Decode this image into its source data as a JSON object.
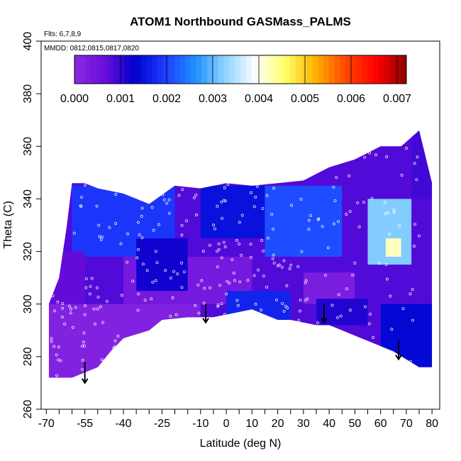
{
  "chart_data": {
    "type": "heatmap",
    "title": "ATOM1 Northbound GASMass_PALMS",
    "notes": {
      "flights": "Flts: 6,7,8,9",
      "dates": "MMDD: 0812,0815,0817,0820"
    },
    "xlabel": "Latitude (deg N)",
    "ylabel": "Theta (C)",
    "xlim": [
      -72,
      83
    ],
    "ylim": [
      260,
      400
    ],
    "x_ticks": [
      -70,
      -55,
      -40,
      -25,
      -10,
      0,
      10,
      20,
      30,
      40,
      50,
      60,
      70,
      80
    ],
    "x_tick_labels": [
      "-70",
      "-55",
      "-40",
      "-25",
      "-10",
      "0",
      "10",
      "20",
      "30",
      "40",
      "50",
      "60",
      "70",
      "80"
    ],
    "x_minor_ticks": [
      -65,
      -60,
      -50,
      -45,
      -35,
      -30,
      -20,
      -15,
      -5,
      5,
      15,
      25,
      35,
      45,
      55,
      65,
      75
    ],
    "y_ticks": [
      260,
      280,
      300,
      320,
      340,
      360,
      380,
      400
    ],
    "y_tick_labels": [
      "260",
      "280",
      "300",
      "320",
      "340",
      "360",
      "380",
      "400"
    ],
    "colorbar": {
      "range": [
        0,
        0.0072
      ],
      "ticks": [
        0.0,
        0.001,
        0.002,
        0.003,
        0.004,
        0.005,
        0.006,
        0.007
      ],
      "tick_labels": [
        "0.000",
        "0.001",
        "0.002",
        "0.003",
        "0.004",
        "0.005",
        "0.006",
        "0.007"
      ],
      "colors": [
        "#8a2be2",
        "#6a0ddb",
        "#0000cd",
        "#1e3cff",
        "#1e90ff",
        "#8fd3ff",
        "#ffffff",
        "#ffff66",
        "#ffb000",
        "#ff4500",
        "#ff0000",
        "#8b0000"
      ]
    },
    "field": {
      "bottom_boundary": [
        [
          -69,
          272
        ],
        [
          -60,
          272
        ],
        [
          -55,
          274
        ],
        [
          -50,
          276
        ],
        [
          -45,
          282
        ],
        [
          -40,
          287
        ],
        [
          -30,
          290
        ],
        [
          -25,
          294
        ],
        [
          -15,
          295
        ],
        [
          -5,
          295
        ],
        [
          0,
          296
        ],
        [
          10,
          298
        ],
        [
          20,
          294
        ],
        [
          25,
          294
        ],
        [
          30,
          293
        ],
        [
          35,
          292
        ],
        [
          40,
          292
        ],
        [
          45,
          290
        ],
        [
          50,
          288
        ],
        [
          55,
          286
        ],
        [
          60,
          284
        ],
        [
          65,
          282
        ],
        [
          70,
          279
        ],
        [
          75,
          276
        ],
        [
          80,
          276
        ]
      ],
      "top_boundary": [
        [
          -69,
          300
        ],
        [
          -65,
          310
        ],
        [
          -62,
          330
        ],
        [
          -60,
          346
        ],
        [
          -55,
          346
        ],
        [
          -50,
          344
        ],
        [
          -40,
          342
        ],
        [
          -35,
          340
        ],
        [
          -30,
          338
        ],
        [
          -20,
          345
        ],
        [
          -10,
          344
        ],
        [
          0,
          346
        ],
        [
          10,
          345
        ],
        [
          20,
          346
        ],
        [
          30,
          347
        ],
        [
          40,
          352
        ],
        [
          50,
          355
        ],
        [
          60,
          360
        ],
        [
          68,
          360
        ],
        [
          75,
          366
        ],
        [
          80,
          346
        ]
      ],
      "patches": [
        {
          "x": [
            -69,
            80
          ],
          "y": [
            272,
            366
          ],
          "value": 0.0008
        },
        {
          "x": [
            -69,
            -10
          ],
          "y": [
            272,
            300
          ],
          "value": 0.0002
        },
        {
          "x": [
            -40,
            10
          ],
          "y": [
            300,
            318
          ],
          "value": 0.0004
        },
        {
          "x": [
            30,
            50
          ],
          "y": [
            300,
            312
          ],
          "value": 0.0003
        },
        {
          "x": [
            -60,
            -20
          ],
          "y": [
            318,
            345
          ],
          "value": 0.0019
        },
        {
          "x": [
            -35,
            -15
          ],
          "y": [
            305,
            325
          ],
          "value": 0.0012
        },
        {
          "x": [
            -10,
            15
          ],
          "y": [
            325,
            345
          ],
          "value": 0.0015
        },
        {
          "x": [
            15,
            45
          ],
          "y": [
            318,
            345
          ],
          "value": 0.0021
        },
        {
          "x": [
            55,
            72
          ],
          "y": [
            315,
            340
          ],
          "value": 0.0032
        },
        {
          "x": [
            62,
            68
          ],
          "y": [
            318,
            325
          ],
          "value": 0.0042
        },
        {
          "x": [
            0,
            25
          ],
          "y": [
            290,
            305
          ],
          "value": 0.0017
        },
        {
          "x": [
            35,
            55
          ],
          "y": [
            292,
            302
          ],
          "value": 0.0011
        },
        {
          "x": [
            60,
            80
          ],
          "y": [
            276,
            300
          ],
          "value": 0.0014
        },
        {
          "x": [
            -69,
            -55
          ],
          "y": [
            300,
            320
          ],
          "value": 0.0007
        },
        {
          "x": [
            72,
            80
          ],
          "y": [
            340,
            366
          ],
          "value": 0.0009
        }
      ]
    },
    "arrows": [
      {
        "x": -55,
        "y_top": 278,
        "y_bottom": 270
      },
      {
        "x": -8,
        "y_top": 300,
        "y_bottom": 293
      },
      {
        "x": 38,
        "y_top": 300,
        "y_bottom": 293
      },
      {
        "x": 67,
        "y_top": 286,
        "y_bottom": 279
      }
    ],
    "grid": false,
    "legend": "none"
  }
}
